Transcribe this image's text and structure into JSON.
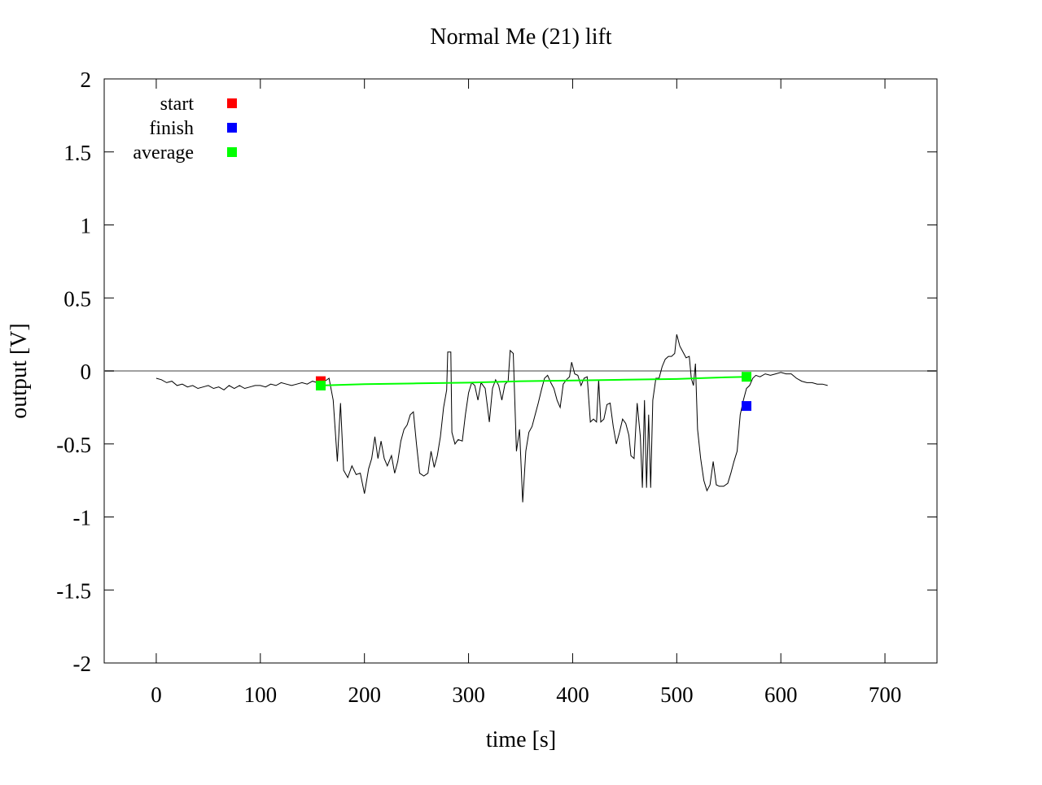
{
  "chart_data": {
    "type": "line",
    "title": "Normal  Me (21) lift",
    "xlabel": "time [s]",
    "ylabel": "output [V]",
    "xlim": [
      -50,
      750
    ],
    "ylim": [
      -2,
      2
    ],
    "x_ticks": [
      0,
      100,
      200,
      300,
      400,
      500,
      600,
      700
    ],
    "x_tick_labels": [
      "0",
      "100",
      "200",
      "300",
      "400",
      "500",
      "600",
      "700"
    ],
    "y_ticks": [
      2,
      1.5,
      1,
      0.5,
      0,
      -0.5,
      -1,
      -1.5,
      -2
    ],
    "y_tick_labels": [
      "2",
      "1.5",
      "1",
      "0.5",
      "0",
      "-0.5",
      "-1",
      "-1.5",
      "-2"
    ],
    "grid": false,
    "zero_line": true,
    "legend": {
      "position": "top-left",
      "entries": [
        {
          "label": "start",
          "color": "#ff0000"
        },
        {
          "label": "finish",
          "color": "#0000ff"
        },
        {
          "label": "average",
          "color": "#00ff00"
        }
      ]
    },
    "colors": {
      "signal": "#000000",
      "average": "#00ff00",
      "zero_line": "#a0a0a0",
      "start": "#ff0000",
      "finish": "#0000ff"
    },
    "series": [
      {
        "points": [
          [
            0,
            -0.05
          ],
          [
            5,
            -0.06
          ],
          [
            10,
            -0.08
          ],
          [
            15,
            -0.07
          ],
          [
            20,
            -0.1
          ],
          [
            25,
            -0.09
          ],
          [
            30,
            -0.11
          ],
          [
            35,
            -0.1
          ],
          [
            40,
            -0.12
          ],
          [
            45,
            -0.11
          ],
          [
            50,
            -0.1
          ],
          [
            55,
            -0.12
          ],
          [
            60,
            -0.11
          ],
          [
            65,
            -0.13
          ],
          [
            70,
            -0.1
          ],
          [
            75,
            -0.12
          ],
          [
            80,
            -0.1
          ],
          [
            85,
            -0.12
          ],
          [
            90,
            -0.11
          ],
          [
            95,
            -0.1
          ],
          [
            100,
            -0.1
          ],
          [
            105,
            -0.11
          ],
          [
            110,
            -0.09
          ],
          [
            115,
            -0.1
          ],
          [
            120,
            -0.08
          ],
          [
            125,
            -0.09
          ],
          [
            130,
            -0.1
          ],
          [
            135,
            -0.09
          ],
          [
            140,
            -0.08
          ],
          [
            145,
            -0.09
          ],
          [
            150,
            -0.07
          ],
          [
            155,
            -0.08
          ],
          [
            158,
            -0.06
          ],
          [
            162,
            -0.07
          ],
          [
            166,
            -0.05
          ],
          [
            170,
            -0.2
          ],
          [
            174,
            -0.62
          ],
          [
            177,
            -0.22
          ],
          [
            180,
            -0.68
          ],
          [
            184,
            -0.73
          ],
          [
            188,
            -0.65
          ],
          [
            192,
            -0.71
          ],
          [
            196,
            -0.7
          ],
          [
            200,
            -0.84
          ],
          [
            204,
            -0.67
          ],
          [
            207,
            -0.6
          ],
          [
            210,
            -0.45
          ],
          [
            213,
            -0.6
          ],
          [
            216,
            -0.48
          ],
          [
            219,
            -0.6
          ],
          [
            222,
            -0.65
          ],
          [
            226,
            -0.58
          ],
          [
            229,
            -0.7
          ],
          [
            232,
            -0.62
          ],
          [
            235,
            -0.48
          ],
          [
            238,
            -0.4
          ],
          [
            241,
            -0.37
          ],
          [
            244,
            -0.3
          ],
          [
            247,
            -0.28
          ],
          [
            250,
            -0.5
          ],
          [
            253,
            -0.7
          ],
          [
            257,
            -0.72
          ],
          [
            261,
            -0.7
          ],
          [
            264,
            -0.55
          ],
          [
            267,
            -0.66
          ],
          [
            270,
            -0.58
          ],
          [
            273,
            -0.45
          ],
          [
            276,
            -0.25
          ],
          [
            279,
            -0.13
          ],
          [
            280,
            0.13
          ],
          [
            283,
            0.13
          ],
          [
            284,
            -0.42
          ],
          [
            287,
            -0.5
          ],
          [
            290,
            -0.47
          ],
          [
            294,
            -0.48
          ],
          [
            297,
            -0.3
          ],
          [
            300,
            -0.15
          ],
          [
            303,
            -0.08
          ],
          [
            306,
            -0.1
          ],
          [
            309,
            -0.2
          ],
          [
            312,
            -0.08
          ],
          [
            316,
            -0.12
          ],
          [
            320,
            -0.35
          ],
          [
            323,
            -0.12
          ],
          [
            326,
            -0.06
          ],
          [
            329,
            -0.1
          ],
          [
            332,
            -0.2
          ],
          [
            335,
            -0.09
          ],
          [
            338,
            -0.07
          ],
          [
            340,
            0.14
          ],
          [
            343,
            0.12
          ],
          [
            346,
            -0.55
          ],
          [
            349,
            -0.4
          ],
          [
            352,
            -0.9
          ],
          [
            355,
            -0.55
          ],
          [
            358,
            -0.42
          ],
          [
            361,
            -0.38
          ],
          [
            364,
            -0.3
          ],
          [
            367,
            -0.22
          ],
          [
            370,
            -0.13
          ],
          [
            373,
            -0.05
          ],
          [
            376,
            -0.03
          ],
          [
            379,
            -0.08
          ],
          [
            382,
            -0.12
          ],
          [
            385,
            -0.2
          ],
          [
            388,
            -0.25
          ],
          [
            391,
            -0.09
          ],
          [
            394,
            -0.06
          ],
          [
            397,
            -0.04
          ],
          [
            399,
            0.06
          ],
          [
            402,
            -0.02
          ],
          [
            405,
            -0.03
          ],
          [
            408,
            -0.1
          ],
          [
            411,
            -0.05
          ],
          [
            414,
            -0.04
          ],
          [
            417,
            -0.35
          ],
          [
            420,
            -0.33
          ],
          [
            423,
            -0.35
          ],
          [
            425,
            -0.06
          ],
          [
            427,
            -0.35
          ],
          [
            430,
            -0.33
          ],
          [
            433,
            -0.23
          ],
          [
            436,
            -0.22
          ],
          [
            439,
            -0.38
          ],
          [
            442,
            -0.5
          ],
          [
            445,
            -0.42
          ],
          [
            448,
            -0.33
          ],
          [
            451,
            -0.36
          ],
          [
            454,
            -0.44
          ],
          [
            456,
            -0.58
          ],
          [
            459,
            -0.6
          ],
          [
            462,
            -0.22
          ],
          [
            465,
            -0.45
          ],
          [
            467,
            -0.8
          ],
          [
            469,
            -0.2
          ],
          [
            471,
            -0.8
          ],
          [
            473,
            -0.3
          ],
          [
            475,
            -0.8
          ],
          [
            477,
            -0.2
          ],
          [
            480,
            -0.05
          ],
          [
            483,
            -0.05
          ],
          [
            486,
            0.03
          ],
          [
            489,
            0.08
          ],
          [
            492,
            0.1
          ],
          [
            495,
            0.1
          ],
          [
            498,
            0.12
          ],
          [
            500,
            0.25
          ],
          [
            503,
            0.17
          ],
          [
            506,
            0.13
          ],
          [
            509,
            0.09
          ],
          [
            512,
            0.1
          ],
          [
            514,
            -0.05
          ],
          [
            516,
            -0.1
          ],
          [
            518,
            0.05
          ],
          [
            520,
            -0.4
          ],
          [
            523,
            -0.6
          ],
          [
            526,
            -0.75
          ],
          [
            529,
            -0.82
          ],
          [
            532,
            -0.78
          ],
          [
            535,
            -0.62
          ],
          [
            538,
            -0.78
          ],
          [
            541,
            -0.79
          ],
          [
            545,
            -0.79
          ],
          [
            549,
            -0.77
          ],
          [
            552,
            -0.7
          ],
          [
            555,
            -0.62
          ],
          [
            558,
            -0.55
          ],
          [
            561,
            -0.3
          ],
          [
            564,
            -0.2
          ],
          [
            567,
            -0.12
          ],
          [
            570,
            -0.1
          ],
          [
            573,
            -0.05
          ],
          [
            576,
            -0.03
          ],
          [
            580,
            -0.04
          ],
          [
            585,
            -0.02
          ],
          [
            590,
            -0.03
          ],
          [
            595,
            -0.02
          ],
          [
            600,
            -0.01
          ],
          [
            605,
            -0.02
          ],
          [
            610,
            -0.02
          ],
          [
            615,
            -0.05
          ],
          [
            620,
            -0.07
          ],
          [
            625,
            -0.08
          ],
          [
            630,
            -0.08
          ],
          [
            635,
            -0.09
          ],
          [
            640,
            -0.09
          ],
          [
            645,
            -0.1
          ]
        ]
      },
      {
        "points": [
          [
            158,
            -0.1
          ],
          [
            200,
            -0.09
          ],
          [
            250,
            -0.085
          ],
          [
            300,
            -0.08
          ],
          [
            350,
            -0.07
          ],
          [
            400,
            -0.065
          ],
          [
            450,
            -0.06
          ],
          [
            500,
            -0.055
          ],
          [
            540,
            -0.045
          ],
          [
            567,
            -0.04
          ]
        ]
      }
    ],
    "markers": [
      {
        "name": "start",
        "x": 158,
        "y": -0.07,
        "color": "#ff0000"
      },
      {
        "name": "average",
        "x": 158,
        "y": -0.1,
        "color": "#00ff00"
      },
      {
        "name": "average",
        "x": 567,
        "y": -0.04,
        "color": "#00ff00"
      },
      {
        "name": "finish",
        "x": 567,
        "y": -0.24,
        "color": "#0000ff"
      }
    ]
  }
}
